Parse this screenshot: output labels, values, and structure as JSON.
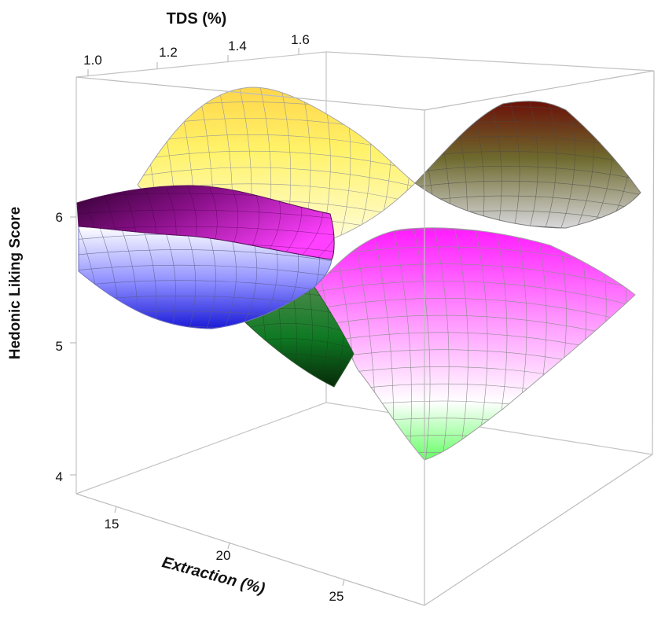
{
  "chart_data": {
    "type": "surface3d",
    "title": "",
    "axes": {
      "x": {
        "label": "Extraction (%)",
        "ticks": [
          "15",
          "20",
          "25"
        ],
        "range": [
          14,
          27
        ]
      },
      "y": {
        "label": "TDS (%)",
        "ticks": [
          "1.0",
          "1.2",
          "1.4",
          "1.6"
        ],
        "range": [
          0.95,
          1.7
        ]
      },
      "z": {
        "label": "Hedonic Liking Score",
        "ticks": [
          "4",
          "5",
          "6"
        ],
        "range": [
          3.85,
          6.6
        ]
      }
    },
    "surfaces": [
      {
        "color_scheme": "yellow-to-white",
        "description_values": {
          "z_range": [
            5.2,
            6.5
          ]
        }
      },
      {
        "color_scheme": "dark-red-to-gray",
        "description_values": {
          "z_range": [
            5.6,
            6.4
          ]
        }
      },
      {
        "color_scheme": "dark-purple-to-magenta",
        "description_values": {
          "z_range": [
            5.3,
            6.1
          ]
        }
      },
      {
        "color_scheme": "blue-to-white",
        "description_values": {
          "z_range": [
            5.2,
            5.8
          ]
        }
      },
      {
        "color_scheme": "dark-green",
        "description_values": {
          "z_range": [
            4.7,
            5.3
          ]
        }
      },
      {
        "color_scheme": "magenta-to-green",
        "description_values": {
          "z_range": [
            3.95,
            5.9
          ]
        }
      }
    ],
    "grid": false,
    "box": true
  },
  "colors": {
    "yellow": "#ffee44",
    "dark_red": "#7a1a10",
    "olive": "#6e6a30",
    "purple": "#4b0a4b",
    "magenta": "#ff22ff",
    "blue": "#2020e0",
    "green": "#0b6a1a",
    "box_line": "#bdbdbd",
    "mesh_line": "#9a9a9a"
  }
}
